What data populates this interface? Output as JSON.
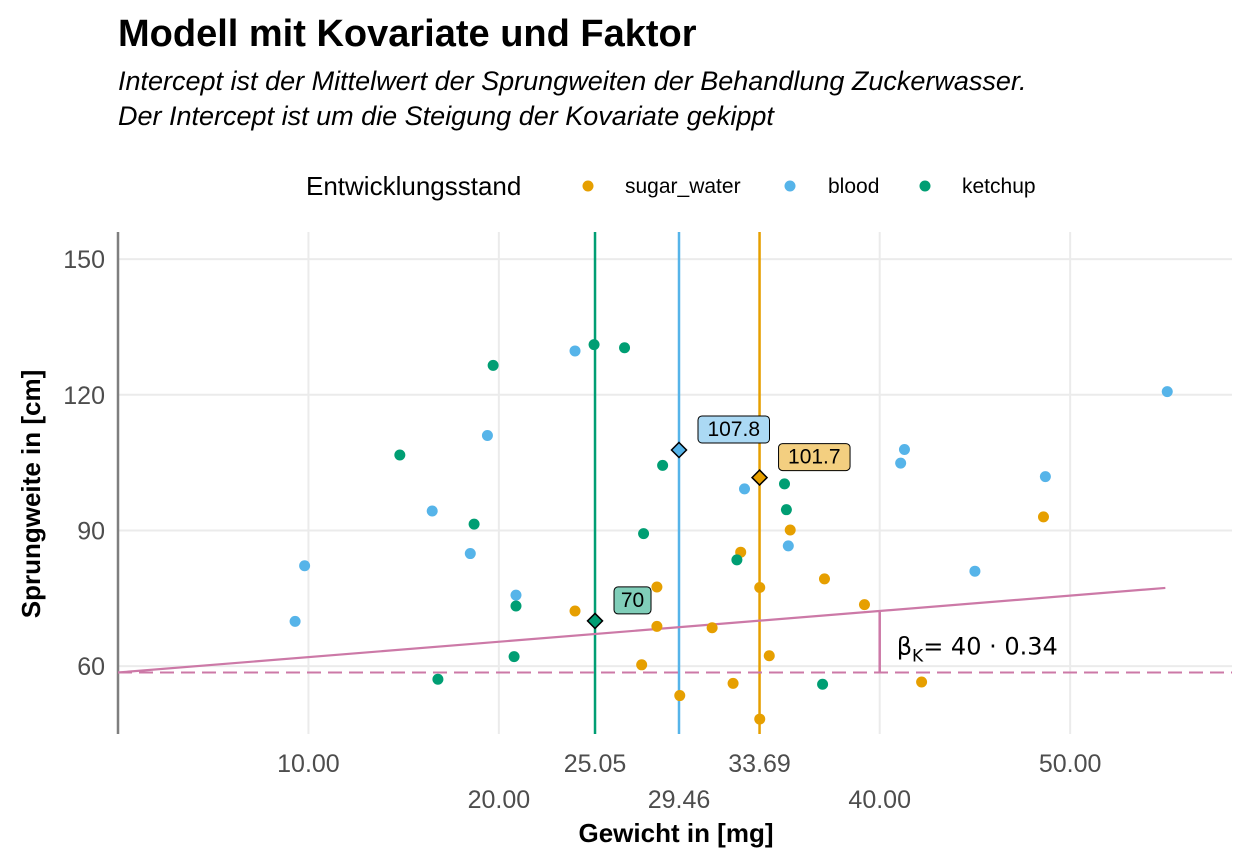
{
  "chart_data": {
    "type": "scatter",
    "title": "Modell mit Kovariate und Faktor",
    "subtitle": [
      "Intercept ist der Mittelwert der Sprungweiten der Behandlung Zuckerwasser.",
      "Der Intercept ist um die Steigung der Kovariate gekippt"
    ],
    "xlabel": "Gewicht in [mg]",
    "ylabel": "Sprungweite in [cm]",
    "xlim": [
      0,
      58.5
    ],
    "ylim": [
      45,
      156
    ],
    "x_ticks": [
      "10.00",
      "20.00",
      "25.05",
      "29.46",
      "33.69",
      "40.00",
      "50.00"
    ],
    "x_tick_values": [
      10,
      20,
      25.05,
      29.46,
      33.69,
      40,
      50
    ],
    "y_ticks": [
      "60",
      "90",
      "120",
      "150"
    ],
    "y_tick_values": [
      60,
      90,
      120,
      150
    ],
    "grid": true,
    "legend": {
      "title": "Entwicklungsstand",
      "position": "top",
      "entries": [
        "sugar_water",
        "blood",
        "ketchup"
      ]
    },
    "colors": {
      "sugar_water": "#E69F00",
      "blood": "#56B4E9",
      "ketchup": "#009E73",
      "slope": "#CC79A7",
      "zero_line": "#7f7f7f",
      "grid": "#ebebeb"
    },
    "series": [
      {
        "name": "sugar_water",
        "points": [
          [
            24.0,
            72.2
          ],
          [
            28.3,
            77.5
          ],
          [
            28.3,
            68.8
          ],
          [
            27.5,
            60.3
          ],
          [
            29.5,
            53.5
          ],
          [
            31.2,
            68.5
          ],
          [
            32.3,
            56.2
          ],
          [
            32.7,
            85.2
          ],
          [
            33.7,
            77.4
          ],
          [
            34.2,
            62.3
          ],
          [
            33.7,
            48.3
          ],
          [
            35.3,
            90.1
          ],
          [
            37.1,
            79.3
          ],
          [
            39.2,
            73.6
          ],
          [
            42.2,
            56.5
          ],
          [
            48.6,
            93.0
          ]
        ]
      },
      {
        "name": "blood",
        "points": [
          [
            9.3,
            69.9
          ],
          [
            9.8,
            82.2
          ],
          [
            16.5,
            94.3
          ],
          [
            18.5,
            84.9
          ],
          [
            19.4,
            111.0
          ],
          [
            20.9,
            75.7
          ],
          [
            24.0,
            129.7
          ],
          [
            32.9,
            99.2
          ],
          [
            35.2,
            86.6
          ],
          [
            41.1,
            104.9
          ],
          [
            41.3,
            107.9
          ],
          [
            45.0,
            81.0
          ],
          [
            48.7,
            101.9
          ],
          [
            55.1,
            120.7
          ]
        ]
      },
      {
        "name": "ketchup",
        "points": [
          [
            14.8,
            106.7
          ],
          [
            16.8,
            57.1
          ],
          [
            18.7,
            91.4
          ],
          [
            19.7,
            126.5
          ],
          [
            20.9,
            73.3
          ],
          [
            20.8,
            62.1
          ],
          [
            25.0,
            131.1
          ],
          [
            26.6,
            130.4
          ],
          [
            27.6,
            89.3
          ],
          [
            28.6,
            104.4
          ],
          [
            32.5,
            83.5
          ],
          [
            35.0,
            100.3
          ],
          [
            35.1,
            94.6
          ],
          [
            37.0,
            56.0
          ]
        ]
      }
    ],
    "group_means": [
      {
        "name": "ketchup",
        "x": 25.05,
        "y": 70,
        "label": "70"
      },
      {
        "name": "blood",
        "x": 29.46,
        "y": 107.8,
        "label": "107.8"
      },
      {
        "name": "sugar_water",
        "x": 33.69,
        "y": 101.7,
        "label": "101.7"
      }
    ],
    "slope_line": {
      "x": [
        0,
        55.0
      ],
      "y": [
        58.6,
        77.3
      ]
    },
    "intercept_line": {
      "y": 58.6
    },
    "beta_annotation": {
      "x": 40,
      "y_from": 58.6,
      "y_to": 72.2,
      "symbol": "β",
      "subscript": "K",
      "text": "= 40 · 0.34"
    }
  }
}
